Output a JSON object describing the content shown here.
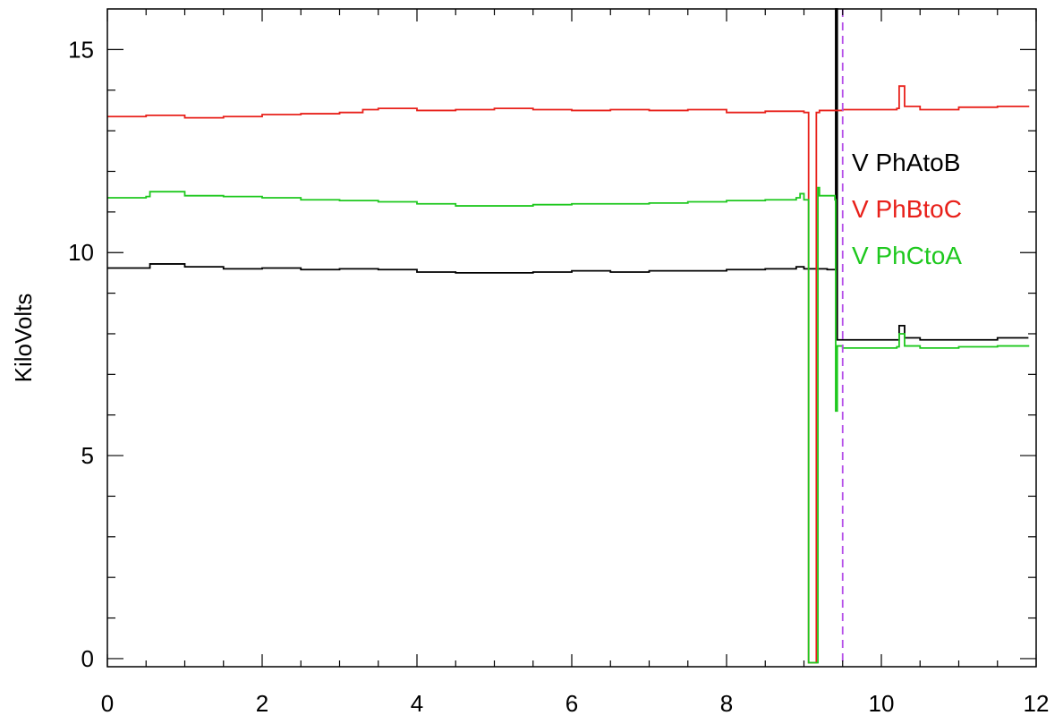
{
  "chart_data": {
    "type": "line",
    "title": "",
    "xlabel": "",
    "ylabel": "KiloVolts",
    "xlim": [
      0,
      12
    ],
    "ylim": [
      -0.2,
      16
    ],
    "grid": false,
    "legend_position": "right",
    "x_ticks": [
      0,
      2,
      4,
      6,
      8,
      10,
      12
    ],
    "x_tick_labels": [
      "0",
      "2",
      "4",
      "6",
      "8",
      "10",
      "12"
    ],
    "y_ticks": [
      0,
      5,
      10,
      15
    ],
    "y_tick_labels": [
      "0",
      "5",
      "10",
      "15"
    ],
    "series": [
      {
        "name": "V PhAtoB",
        "color": "#000000",
        "x": [
          0,
          0.5,
          0.55,
          1.0,
          1.5,
          2.0,
          2.5,
          3.0,
          3.5,
          4.0,
          4.5,
          5.0,
          5.5,
          6.0,
          6.5,
          7.0,
          7.5,
          8.0,
          8.5,
          8.9,
          9.0,
          9.3,
          9.4,
          9.41,
          9.42,
          9.43,
          9.5,
          10.0,
          10.2,
          10.23,
          10.3,
          10.5,
          11.0,
          11.5,
          11.9
        ],
        "y": [
          9.62,
          9.62,
          9.72,
          9.65,
          9.6,
          9.62,
          9.58,
          9.6,
          9.58,
          9.52,
          9.5,
          9.5,
          9.52,
          9.55,
          9.52,
          9.55,
          9.55,
          9.58,
          9.6,
          9.65,
          9.6,
          9.58,
          9.58,
          16.1,
          16.1,
          7.85,
          7.85,
          7.85,
          7.85,
          8.2,
          7.9,
          7.85,
          7.85,
          7.9,
          7.9
        ]
      },
      {
        "name": "V PhBtoC",
        "color": "#e8201a",
        "x": [
          0,
          0.5,
          1.0,
          1.5,
          2.0,
          2.5,
          3.0,
          3.3,
          3.5,
          4.0,
          4.5,
          5.0,
          5.5,
          6.0,
          6.5,
          7.0,
          7.5,
          8.0,
          8.5,
          9.0,
          9.05,
          9.06,
          9.15,
          9.16,
          9.2,
          9.4,
          9.5,
          10.0,
          10.2,
          10.23,
          10.3,
          10.5,
          11.0,
          11.5,
          11.9
        ],
        "y": [
          13.35,
          13.38,
          13.32,
          13.35,
          13.4,
          13.42,
          13.45,
          13.52,
          13.55,
          13.5,
          13.52,
          13.55,
          13.52,
          13.5,
          13.52,
          13.5,
          13.52,
          13.45,
          13.48,
          13.45,
          13.45,
          -0.1,
          -0.1,
          13.45,
          13.5,
          13.5,
          13.52,
          13.52,
          13.55,
          14.1,
          13.6,
          13.52,
          13.58,
          13.6,
          13.58
        ]
      },
      {
        "name": "V PhCtoA",
        "color": "#1ec81e",
        "x": [
          0,
          0.5,
          0.55,
          1.0,
          1.5,
          2.0,
          2.5,
          3.0,
          3.5,
          4.0,
          4.5,
          5.0,
          5.5,
          6.0,
          6.5,
          7.0,
          7.5,
          8.0,
          8.5,
          8.9,
          8.95,
          9.0,
          9.05,
          9.06,
          9.15,
          9.18,
          9.2,
          9.4,
          9.41,
          9.43,
          9.5,
          10.0,
          10.2,
          10.23,
          10.3,
          10.5,
          11.0,
          11.5,
          11.9
        ],
        "y": [
          11.35,
          11.38,
          11.5,
          11.4,
          11.38,
          11.35,
          11.3,
          11.28,
          11.25,
          11.2,
          11.15,
          11.15,
          11.18,
          11.2,
          11.2,
          11.22,
          11.25,
          11.28,
          11.3,
          11.35,
          11.45,
          11.3,
          11.3,
          -0.1,
          -0.1,
          11.6,
          11.4,
          11.3,
          6.1,
          7.7,
          7.65,
          7.65,
          7.68,
          8.0,
          7.7,
          7.65,
          7.68,
          7.7,
          7.68
        ]
      }
    ],
    "annotations": [
      {
        "type": "vline",
        "x": 9.5,
        "color": "#b44ee8",
        "style": "dashed"
      }
    ]
  }
}
